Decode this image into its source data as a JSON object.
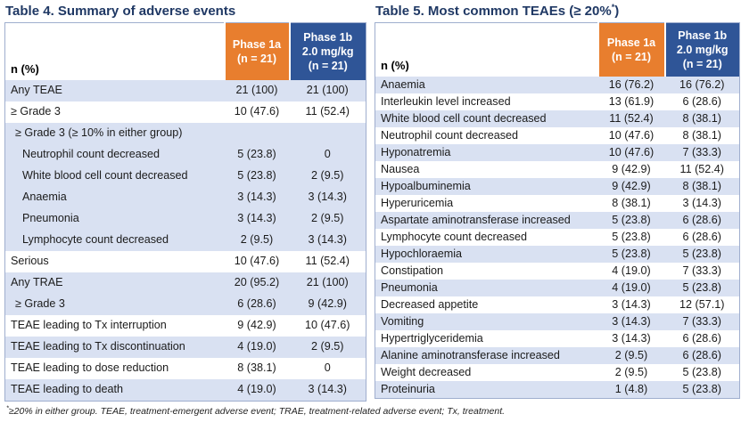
{
  "colors": {
    "orange": "#E87E2E",
    "blue": "#2F5597",
    "shaded_row": "#D9E1F2",
    "title": "#1F3864",
    "border": "#9FAECE"
  },
  "footnote": {
    "sup": "*",
    "text": "≥20% in either group. TEAE, treatment-emergent adverse event; TRAE, treatment-related adverse event; Tx, treatment."
  },
  "tables": [
    {
      "title_parts": {
        "main": "Table 4. Summary of adverse events",
        "sup": "",
        "tail": ""
      },
      "header": {
        "label": "n (%)",
        "col1": "Phase 1a\n(n = 21)",
        "col2": "Phase 1b\n2.0 mg/kg\n(n = 21)"
      },
      "rows": [
        {
          "label": "Any TEAE",
          "v1": "21 (100)",
          "v2": "21 (100)",
          "shaded": true,
          "indent": 0
        },
        {
          "label": "≥ Grade 3",
          "v1": "10 (47.6)",
          "v2": "11 (52.4)",
          "shaded": false,
          "indent": 0
        },
        {
          "label": "≥ Grade 3 (≥ 10% in either group)",
          "v1": "",
          "v2": "",
          "shaded": true,
          "indent": 1
        },
        {
          "label": "Neutrophil count decreased",
          "v1": "5 (23.8)",
          "v2": "0",
          "shaded": true,
          "indent": 2
        },
        {
          "label": "White blood cell count decreased",
          "v1": "5 (23.8)",
          "v2": "2 (9.5)",
          "shaded": true,
          "indent": 2
        },
        {
          "label": "Anaemia",
          "v1": "3 (14.3)",
          "v2": "3 (14.3)",
          "shaded": true,
          "indent": 2
        },
        {
          "label": "Pneumonia",
          "v1": "3 (14.3)",
          "v2": "2 (9.5)",
          "shaded": true,
          "indent": 2
        },
        {
          "label": "Lymphocyte count decreased",
          "v1": "2 (9.5)",
          "v2": "3 (14.3)",
          "shaded": true,
          "indent": 2
        },
        {
          "label": "Serious",
          "v1": "10 (47.6)",
          "v2": "11 (52.4)",
          "shaded": false,
          "indent": 0
        },
        {
          "label": "Any TRAE",
          "v1": "20 (95.2)",
          "v2": "21 (100)",
          "shaded": true,
          "indent": 0
        },
        {
          "label": "≥ Grade 3",
          "v1": "6 (28.6)",
          "v2": "9 (42.9)",
          "shaded": true,
          "indent": 1
        },
        {
          "label": "TEAE leading to Tx interruption",
          "v1": "9 (42.9)",
          "v2": "10 (47.6)",
          "shaded": false,
          "indent": 0
        },
        {
          "label": "TEAE leading to Tx discontinuation",
          "v1": "4 (19.0)",
          "v2": "2 (9.5)",
          "shaded": true,
          "indent": 0
        },
        {
          "label": "TEAE leading to dose reduction",
          "v1": "8 (38.1)",
          "v2": "0",
          "shaded": false,
          "indent": 0
        },
        {
          "label": "TEAE leading to death",
          "v1": "4 (19.0)",
          "v2": "3 (14.3)",
          "shaded": true,
          "indent": 0
        }
      ]
    },
    {
      "title_parts": {
        "main": "Table 5. Most common TEAEs (≥ 20%",
        "sup": "*",
        "tail": ")"
      },
      "header": {
        "label": "n (%)",
        "col1": "Phase 1a\n(n = 21)",
        "col2": "Phase 1b\n2.0 mg/kg\n(n = 21)"
      },
      "rows": [
        {
          "label": "Anaemia",
          "v1": "16 (76.2)",
          "v2": "16 (76.2)",
          "shaded": true,
          "indent": 0
        },
        {
          "label": "Interleukin level increased",
          "v1": "13 (61.9)",
          "v2": "6 (28.6)",
          "shaded": false,
          "indent": 0
        },
        {
          "label": "White blood cell count decreased",
          "v1": "11 (52.4)",
          "v2": "8 (38.1)",
          "shaded": true,
          "indent": 0
        },
        {
          "label": "Neutrophil count decreased",
          "v1": "10 (47.6)",
          "v2": "8 (38.1)",
          "shaded": false,
          "indent": 0
        },
        {
          "label": "Hyponatremia",
          "v1": "10 (47.6)",
          "v2": "7 (33.3)",
          "shaded": true,
          "indent": 0
        },
        {
          "label": "Nausea",
          "v1": "9 (42.9)",
          "v2": "11 (52.4)",
          "shaded": false,
          "indent": 0
        },
        {
          "label": "Hypoalbuminemia",
          "v1": "9 (42.9)",
          "v2": "8 (38.1)",
          "shaded": true,
          "indent": 0
        },
        {
          "label": "Hyperuricemia",
          "v1": "8 (38.1)",
          "v2": "3 (14.3)",
          "shaded": false,
          "indent": 0
        },
        {
          "label": "Aspartate aminotransferase increased",
          "v1": "5 (23.8)",
          "v2": "6 (28.6)",
          "shaded": true,
          "indent": 0
        },
        {
          "label": "Lymphocyte count decreased",
          "v1": "5 (23.8)",
          "v2": "6 (28.6)",
          "shaded": false,
          "indent": 0
        },
        {
          "label": "Hypochloraemia",
          "v1": "5 (23.8)",
          "v2": "5 (23.8)",
          "shaded": true,
          "indent": 0
        },
        {
          "label": "Constipation",
          "v1": "4 (19.0)",
          "v2": "7 (33.3)",
          "shaded": false,
          "indent": 0
        },
        {
          "label": "Pneumonia",
          "v1": "4 (19.0)",
          "v2": "5 (23.8)",
          "shaded": true,
          "indent": 0
        },
        {
          "label": "Decreased appetite",
          "v1": "3 (14.3)",
          "v2": "12 (57.1)",
          "shaded": false,
          "indent": 0
        },
        {
          "label": "Vomiting",
          "v1": "3 (14.3)",
          "v2": "7 (33.3)",
          "shaded": true,
          "indent": 0
        },
        {
          "label": "Hypertriglyceridemia",
          "v1": "3 (14.3)",
          "v2": "6 (28.6)",
          "shaded": false,
          "indent": 0
        },
        {
          "label": "Alanine aminotransferase increased",
          "v1": "2 (9.5)",
          "v2": "6 (28.6)",
          "shaded": true,
          "indent": 0
        },
        {
          "label": "Weight decreased",
          "v1": "2 (9.5)",
          "v2": "5 (23.8)",
          "shaded": false,
          "indent": 0
        },
        {
          "label": "Proteinuria",
          "v1": "1 (4.8)",
          "v2": "5 (23.8)",
          "shaded": true,
          "indent": 0
        }
      ]
    }
  ]
}
